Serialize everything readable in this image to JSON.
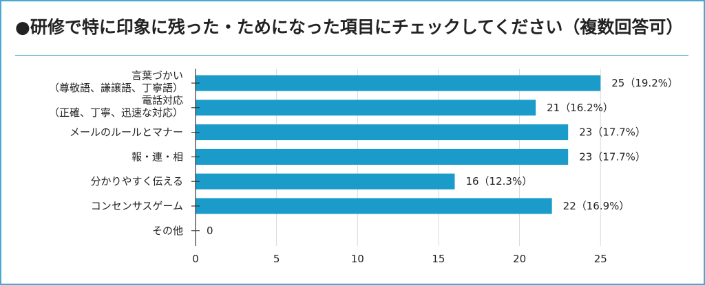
{
  "title": "●研修で特に印象に残った・ためになった項目にチェックしてください（複数回答可）",
  "colors": {
    "bar": "#1a9bc9",
    "frame": "#4aa8d0",
    "grid": "#d9d9d9",
    "axis": "#333333"
  },
  "chart_data": {
    "type": "bar",
    "orientation": "horizontal",
    "title": "●研修で特に印象に残った・ためになった項目にチェックしてください（複数回答可）",
    "categories": [
      [
        "言葉づかい",
        "（尊敬語、謙譲語、丁寧語）"
      ],
      [
        "電話対応",
        "（正確、丁寧、迅速な対応）"
      ],
      [
        "メールのルールとマナー"
      ],
      [
        "報・連・相"
      ],
      [
        "分かりやすく伝える"
      ],
      [
        "コンセンサスゲーム"
      ],
      [
        "その他"
      ]
    ],
    "values": [
      25,
      21,
      23,
      23,
      16,
      22,
      0
    ],
    "labels": [
      "25（19.2%）",
      "21（16.2%）",
      "23（17.7%）",
      "23（17.7%）",
      "16（12.3%）",
      "22（16.9%）",
      "0"
    ],
    "xlim": [
      0,
      25
    ],
    "xticks": [
      0,
      5,
      10,
      15,
      20,
      25
    ],
    "grid": true,
    "xlabel": "",
    "ylabel": ""
  }
}
